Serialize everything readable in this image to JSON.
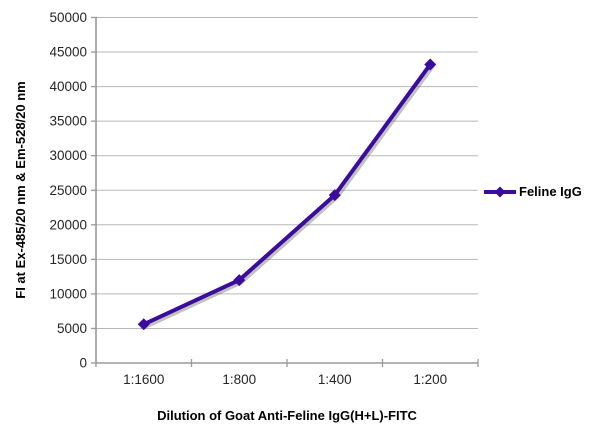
{
  "chart_data": {
    "type": "line",
    "title": "",
    "xlabel": "Dilution of Goat Anti-Feline IgG(H+L)-FITC",
    "ylabel": "FI at Ex-485/20 nm & Em-528/20 nm",
    "categories": [
      "1:1600",
      "1:800",
      "1:400",
      "1:200"
    ],
    "series": [
      {
        "name": "Feline IgG",
        "values": [
          5600,
          12000,
          24300,
          43200
        ],
        "color": "#3c0c9c",
        "marker": "diamond"
      }
    ],
    "ylim": [
      0,
      50000
    ],
    "ytick_step": 5000,
    "grid": "horizontal",
    "legend_position": "right"
  },
  "colors": {
    "background": "#ffffff",
    "gridline": "#b8b8b8",
    "axis": "#9a9a9a",
    "tick_text": "#262626",
    "title_text": "#000000",
    "series_shadow": "rgba(80,80,80,0.35)"
  }
}
